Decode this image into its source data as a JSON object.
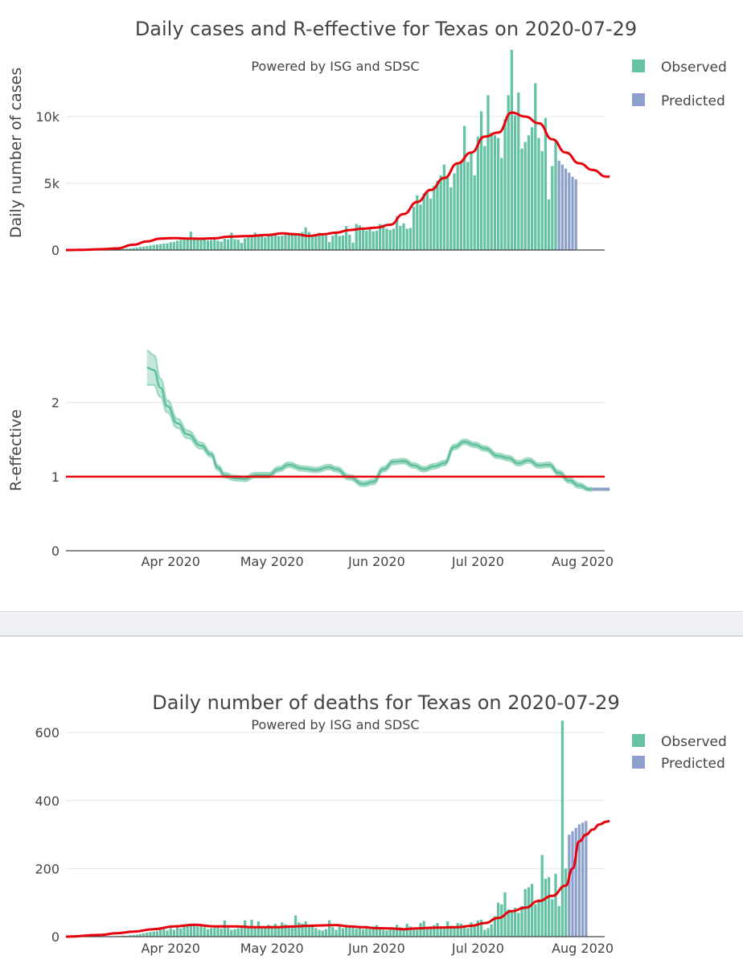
{
  "panel1": {
    "title": "Daily cases and R-effective for Texas on 2020-07-29",
    "subtitle": "Powered by ISG and SDSC",
    "legend": [
      {
        "label": "Observed",
        "color": "#66c2a5"
      },
      {
        "label": "Predicted",
        "color": "#8da0cb"
      }
    ]
  },
  "panel2": {
    "title": "Daily number of deaths for Texas on 2020-07-29",
    "subtitle": "Powered by ISG and SDSC",
    "legend": [
      {
        "label": "Observed",
        "color": "#66c2a5"
      },
      {
        "label": "Predicted",
        "color": "#8da0cb"
      }
    ]
  },
  "colors": {
    "observed": "#66c2a5",
    "predicted": "#8da0cb",
    "trend": "#e8000b",
    "r_line": "#5fbf9a",
    "r_band": "#b5e3d2"
  },
  "chart_data": [
    {
      "type": "bar",
      "name": "daily-cases",
      "ylabel": "Daily number of cases",
      "x_range": [
        "2020-03-01",
        "2020-08-04"
      ],
      "ylim": [
        0,
        15000
      ],
      "yticks": [
        {
          "v": 0,
          "label": "0"
        },
        {
          "v": 5000,
          "label": "5k"
        },
        {
          "v": 10000,
          "label": "10k"
        }
      ],
      "observed_start": "2020-03-16",
      "observed_values": [
        40,
        60,
        80,
        110,
        130,
        160,
        190,
        230,
        260,
        300,
        340,
        380,
        420,
        450,
        480,
        500,
        580,
        620,
        700,
        760,
        820,
        880,
        1380,
        860,
        800,
        760,
        780,
        720,
        740,
        820,
        700,
        640,
        860,
        800,
        1300,
        820,
        780,
        540,
        880,
        960,
        1050,
        1300,
        1080,
        1200,
        950,
        1180,
        1180,
        1150,
        1050,
        1080,
        1200,
        1250,
        1300,
        1250,
        1200,
        1350,
        1700,
        1350,
        1000,
        1150,
        1300,
        1200,
        1100,
        600,
        1080,
        1320,
        1050,
        1100,
        1800,
        1150,
        560,
        1950,
        1850,
        1700,
        1450,
        1550,
        1400,
        1450,
        1950,
        1900,
        1600,
        1500,
        1600,
        2550,
        1800,
        2000,
        1600,
        1650,
        3250,
        4100,
        3400,
        4250,
        4350,
        3850,
        4800,
        5200,
        5600,
        6400,
        5500,
        4700,
        5750,
        6400,
        6700,
        9300,
        6600,
        7300,
        5600,
        8500,
        10400,
        7800,
        11600,
        8800,
        8600,
        8400,
        6900,
        9800,
        11600,
        15000,
        10100,
        11800,
        7600,
        8100,
        8600,
        9200,
        12500,
        8400,
        7400,
        9900,
        3800,
        6300,
        8100
      ],
      "predicted_values": [
        6700,
        6400,
        6100,
        5800,
        5500,
        5300
      ],
      "trend": [
        [
          0,
          0
        ],
        [
          5,
          20
        ],
        [
          10,
          60
        ],
        [
          15,
          120
        ],
        [
          20,
          400
        ],
        [
          24,
          650
        ],
        [
          28,
          860
        ],
        [
          32,
          900
        ],
        [
          36,
          860
        ],
        [
          40,
          850
        ],
        [
          44,
          880
        ],
        [
          48,
          1000
        ],
        [
          54,
          1050
        ],
        [
          60,
          1130
        ],
        [
          64,
          1250
        ],
        [
          68,
          1180
        ],
        [
          72,
          1060
        ],
        [
          76,
          1180
        ],
        [
          80,
          1300
        ],
        [
          84,
          1500
        ],
        [
          88,
          1600
        ],
        [
          92,
          1680
        ],
        [
          96,
          1900
        ],
        [
          100,
          2700
        ],
        [
          104,
          3600
        ],
        [
          108,
          4500
        ],
        [
          112,
          5400
        ],
        [
          116,
          6500
        ],
        [
          120,
          7300
        ],
        [
          124,
          8500
        ],
        [
          128,
          8800
        ],
        [
          132,
          10300
        ],
        [
          136,
          10000
        ],
        [
          140,
          9500
        ],
        [
          144,
          8300
        ],
        [
          148,
          7300
        ],
        [
          152,
          6500
        ],
        [
          156,
          6000
        ],
        [
          160,
          5500
        ],
        [
          161,
          5500
        ]
      ]
    },
    {
      "type": "line",
      "name": "r-effective",
      "ylabel": "R-effective",
      "x_range": [
        "2020-03-01",
        "2020-08-04"
      ],
      "ylim": [
        0,
        2.8
      ],
      "yticks": [
        {
          "v": 0,
          "label": "0"
        },
        {
          "v": 1,
          "label": "1"
        },
        {
          "v": 2,
          "label": "2"
        }
      ],
      "reference_line": 1,
      "observed": [
        [
          24,
          2.47
        ],
        [
          26,
          2.44
        ],
        [
          28,
          2.2
        ],
        [
          30,
          1.95
        ],
        [
          33,
          1.72
        ],
        [
          36,
          1.57
        ],
        [
          40,
          1.42
        ],
        [
          43,
          1.3
        ],
        [
          45,
          1.12
        ],
        [
          47,
          1.02
        ],
        [
          50,
          0.98
        ],
        [
          53,
          0.97
        ],
        [
          56,
          1.02
        ],
        [
          60,
          1.02
        ],
        [
          63,
          1.1
        ],
        [
          66,
          1.16
        ],
        [
          70,
          1.11
        ],
        [
          74,
          1.09
        ],
        [
          78,
          1.13
        ],
        [
          80,
          1.1
        ],
        [
          84,
          0.99
        ],
        [
          88,
          0.9
        ],
        [
          91,
          0.93
        ],
        [
          94,
          1.1
        ],
        [
          97,
          1.2
        ],
        [
          100,
          1.21
        ],
        [
          103,
          1.15
        ],
        [
          106,
          1.1
        ],
        [
          109,
          1.14
        ],
        [
          112,
          1.18
        ],
        [
          115,
          1.4
        ],
        [
          118,
          1.47
        ],
        [
          121,
          1.43
        ],
        [
          124,
          1.38
        ],
        [
          128,
          1.28
        ],
        [
          131,
          1.25
        ],
        [
          134,
          1.18
        ],
        [
          137,
          1.22
        ],
        [
          140,
          1.15
        ],
        [
          143,
          1.16
        ],
        [
          146,
          1.05
        ],
        [
          149,
          0.95
        ],
        [
          152,
          0.88
        ],
        [
          155,
          0.83
        ],
        [
          156,
          0.83
        ]
      ],
      "upper_offset": [
        0.23,
        0.2,
        0.12,
        0.08,
        0.06,
        0.05,
        0.04,
        0.03,
        0.03,
        0.03,
        0.03,
        0.03,
        0.03,
        0.03,
        0.03,
        0.03,
        0.03,
        0.03,
        0.03,
        0.03,
        0.03,
        0.03,
        0.03,
        0.03,
        0.03,
        0.03,
        0.03,
        0.03,
        0.03,
        0.03,
        0.03,
        0.03,
        0.03,
        0.03,
        0.03,
        0.03,
        0.03,
        0.03,
        0.03,
        0.03,
        0.03,
        0.03,
        0.03,
        0.02,
        0.02
      ],
      "predicted": [
        [
          156,
          0.83
        ],
        [
          161,
          0.83
        ]
      ],
      "xticks": [
        {
          "day": 31,
          "label": "Apr 2020"
        },
        {
          "day": 61,
          "label": "May 2020"
        },
        {
          "day": 92,
          "label": "Jun 2020"
        },
        {
          "day": 122,
          "label": "Jul 2020"
        },
        {
          "day": 153,
          "label": "Aug 2020"
        }
      ]
    },
    {
      "type": "bar",
      "name": "daily-deaths",
      "ylabel": "",
      "x_range": [
        "2020-03-01",
        "2020-08-04"
      ],
      "ylim": [
        0,
        650
      ],
      "yticks": [
        {
          "v": 0,
          "label": "0"
        },
        {
          "v": 200,
          "label": "200"
        },
        {
          "v": 400,
          "label": "400"
        },
        {
          "v": 600,
          "label": "600"
        }
      ],
      "observed_start": "2020-03-16",
      "observed_values": [
        2,
        2,
        3,
        3,
        4,
        5,
        6,
        8,
        10,
        12,
        14,
        15,
        16,
        20,
        22,
        18,
        25,
        20,
        28,
        24,
        30,
        35,
        32,
        38,
        30,
        34,
        28,
        22,
        25,
        26,
        30,
        24,
        48,
        26,
        20,
        22,
        25,
        30,
        48,
        28,
        50,
        30,
        45,
        28,
        30,
        35,
        32,
        38,
        28,
        42,
        36,
        32,
        30,
        62,
        42,
        38,
        45,
        35,
        30,
        25,
        20,
        18,
        22,
        48,
        28,
        20,
        30,
        25,
        35,
        28,
        32,
        24,
        30,
        22,
        32,
        28,
        30,
        34,
        25,
        20,
        18,
        24,
        22,
        35,
        28,
        24,
        38,
        30,
        22,
        20,
        40,
        46,
        28,
        30,
        34,
        40,
        26,
        24,
        45,
        32,
        28,
        40,
        38,
        30,
        25,
        42,
        35,
        48,
        50,
        20,
        25,
        36,
        60,
        100,
        95,
        130,
        80,
        75,
        85,
        70,
        90,
        140,
        145,
        155,
        95,
        110,
        240,
        170,
        175,
        110,
        185,
        90,
        635,
        200
      ],
      "predicted_values": [
        300,
        310,
        320,
        330,
        335,
        340
      ],
      "trend": [
        [
          0,
          0
        ],
        [
          10,
          5
        ],
        [
          15,
          10
        ],
        [
          20,
          15
        ],
        [
          26,
          22
        ],
        [
          32,
          30
        ],
        [
          38,
          35
        ],
        [
          44,
          30
        ],
        [
          50,
          30
        ],
        [
          56,
          28
        ],
        [
          62,
          28
        ],
        [
          68,
          30
        ],
        [
          72,
          32
        ],
        [
          76,
          33
        ],
        [
          80,
          34
        ],
        [
          84,
          30
        ],
        [
          88,
          28
        ],
        [
          92,
          25
        ],
        [
          96,
          24
        ],
        [
          100,
          22
        ],
        [
          104,
          24
        ],
        [
          108,
          26
        ],
        [
          112,
          27
        ],
        [
          116,
          28
        ],
        [
          120,
          32
        ],
        [
          124,
          40
        ],
        [
          128,
          55
        ],
        [
          132,
          75
        ],
        [
          136,
          85
        ],
        [
          140,
          105
        ],
        [
          144,
          120
        ],
        [
          148,
          150
        ],
        [
          150,
          200
        ],
        [
          152,
          280
        ],
        [
          154,
          300
        ],
        [
          156,
          315
        ],
        [
          158,
          330
        ],
        [
          160,
          338
        ],
        [
          161,
          340
        ]
      ],
      "xticks": [
        {
          "day": 31,
          "label": "Apr 2020"
        },
        {
          "day": 61,
          "label": "May 2020"
        },
        {
          "day": 92,
          "label": "Jun 2020"
        },
        {
          "day": 122,
          "label": "Jul 2020"
        },
        {
          "day": 153,
          "label": "Aug 2020"
        }
      ]
    }
  ]
}
